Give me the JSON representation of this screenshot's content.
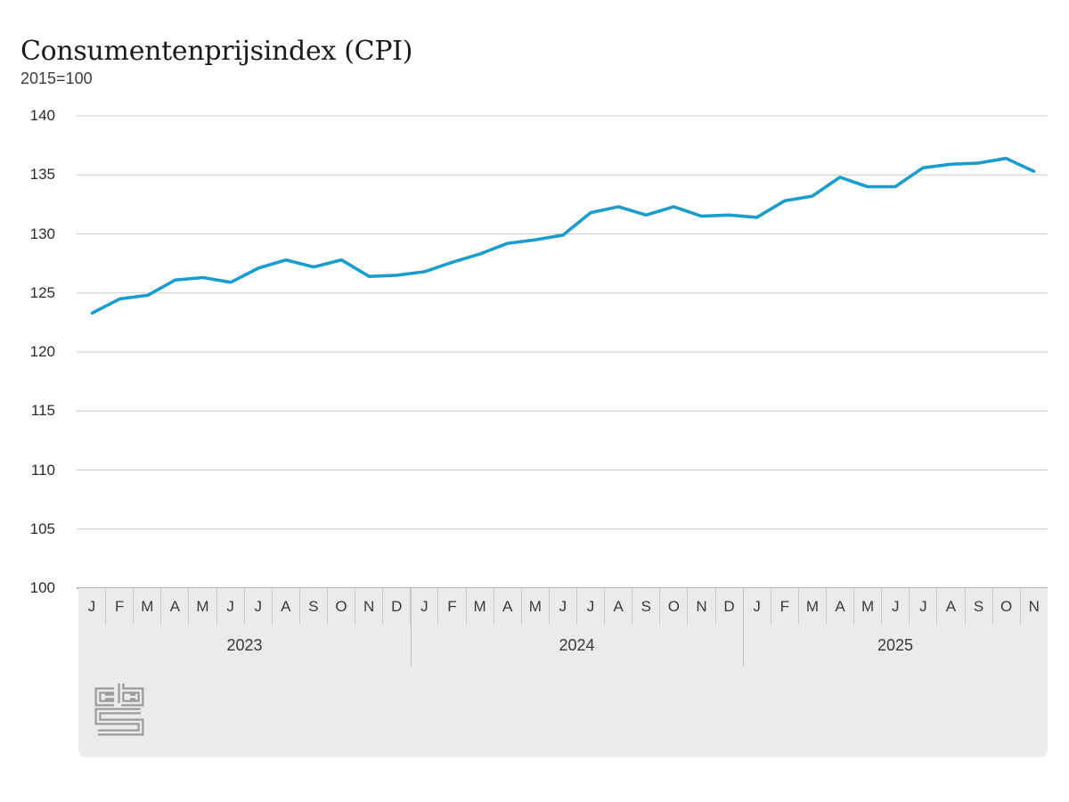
{
  "header": {
    "title": "Consumentenprijsindex (CPI)",
    "subtitle": "2015=100"
  },
  "chart_data": {
    "type": "line",
    "title": "Consumentenprijsindex (CPI)",
    "subtitle": "2015=100",
    "ylabel": "",
    "xlabel": "",
    "ylim": [
      100,
      140
    ],
    "yticks": [
      100,
      105,
      110,
      115,
      120,
      125,
      130,
      135,
      140
    ],
    "grid": true,
    "legend": "none",
    "years": [
      {
        "label": "2023",
        "months": [
          "J",
          "F",
          "M",
          "A",
          "M",
          "J",
          "J",
          "A",
          "S",
          "O",
          "N",
          "D"
        ]
      },
      {
        "label": "2024",
        "months": [
          "J",
          "F",
          "M",
          "A",
          "M",
          "J",
          "J",
          "A",
          "S",
          "O",
          "N",
          "D"
        ]
      },
      {
        "label": "2025",
        "months": [
          "J",
          "F",
          "M",
          "A",
          "M",
          "J",
          "J",
          "A",
          "S",
          "O",
          "N"
        ]
      }
    ],
    "series": [
      {
        "name": "CPI (2015=100)",
        "values": [
          123.3,
          124.5,
          124.8,
          126.1,
          126.3,
          125.9,
          127.1,
          127.8,
          127.2,
          127.8,
          126.4,
          126.5,
          126.8,
          127.6,
          128.3,
          129.2,
          129.5,
          129.9,
          131.8,
          132.3,
          131.6,
          132.3,
          131.5,
          131.6,
          131.4,
          132.8,
          133.2,
          134.8,
          134.0,
          134.0,
          135.6,
          135.9,
          136.0,
          136.4,
          135.3
        ]
      }
    ],
    "colors": {
      "line": "#189dce",
      "grid": "#cccccc",
      "axis": "#9b9b9b",
      "band_background": "#ebebeb",
      "separator": "#c9c9c9",
      "text": "#3a3a3a",
      "logo": "#9b9b9b"
    }
  },
  "footer": {
    "logo": "cbs-logo"
  }
}
